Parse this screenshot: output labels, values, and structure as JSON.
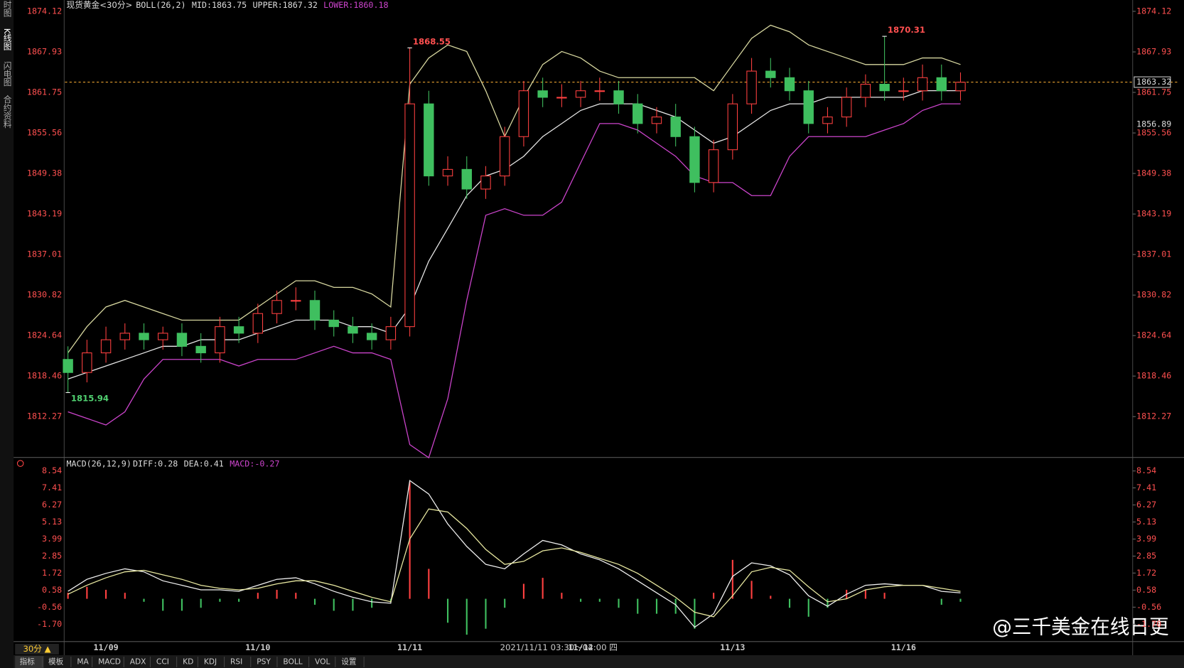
{
  "ui": {
    "sidebar": [
      "分时图",
      "K线图",
      "闪电图",
      "合约资料"
    ],
    "period": "30分 ▲",
    "tabs": [
      "指标",
      "模板",
      "MA",
      "MACD",
      "ADX",
      "CCI",
      "KD",
      "KDJ",
      "RSI",
      "PSY",
      "BOLL",
      "VOL",
      "设置"
    ],
    "crosshair_time": "2021/11/11 03:30～04:00 四",
    "watermark": "@三千美金在线日更"
  },
  "chart_data": [
    {
      "type": "candlestick",
      "title": "现货黄金<30分>",
      "indicator": [
        "BOLL(26,2)",
        "MID:1863.75",
        "UPPER:1867.32",
        "LOWER:1860.18"
      ],
      "categories": [
        null,
        null,
        "11/09",
        null,
        null,
        null,
        null,
        null,
        null,
        null,
        "11/10",
        null,
        null,
        null,
        null,
        null,
        null,
        null,
        "11/11",
        null,
        null,
        null,
        null,
        null,
        null,
        null,
        null,
        "11/12",
        null,
        null,
        null,
        null,
        null,
        null,
        null,
        "11/13",
        null,
        null,
        null,
        null,
        null,
        null,
        null,
        null,
        "11/16",
        null,
        null,
        null
      ],
      "open": [
        1821,
        1819,
        1822,
        1824,
        1825,
        1824,
        1825,
        1823,
        1822,
        1826,
        1825,
        1828,
        1830,
        1830,
        1827,
        1826,
        1825,
        1824,
        1826,
        1860,
        1849,
        1850,
        1847,
        1849,
        1855,
        1862,
        1861,
        1861,
        1862,
        1862,
        1860,
        1857,
        1858,
        1855,
        1848,
        1853,
        1860,
        1865,
        1864,
        1862,
        1857,
        1858,
        1861,
        1863,
        1862,
        1862,
        1864,
        1862
      ],
      "high": [
        1823,
        1824,
        1826,
        1826.5,
        1826.5,
        1826,
        1826.5,
        1825,
        1827.5,
        1827.5,
        1829.5,
        1831.5,
        1832,
        1831.5,
        1828.5,
        1827.5,
        1826.5,
        1827.5,
        1868.55,
        1862,
        1852,
        1852,
        1850.5,
        1856.5,
        1863.5,
        1864,
        1863,
        1863.5,
        1864,
        1863.5,
        1861.5,
        1859.5,
        1860,
        1856.5,
        1854.5,
        1861.5,
        1867,
        1867,
        1865.5,
        1863.5,
        1859.5,
        1862.5,
        1864.5,
        1870.31,
        1864,
        1866,
        1866,
        1864.8
      ],
      "low": [
        1815.94,
        1817.5,
        1820.5,
        1822.5,
        1822.5,
        1822.5,
        1821.5,
        1820.5,
        1820.5,
        1823.5,
        1823.5,
        1826.5,
        1828.5,
        1825.5,
        1824.5,
        1823.5,
        1822.5,
        1822.5,
        1824.5,
        1847.5,
        1847.5,
        1845.5,
        1845.5,
        1847.5,
        1853.5,
        1859.5,
        1859.5,
        1859.5,
        1860.5,
        1858.5,
        1855.5,
        1855.5,
        1853.5,
        1846.5,
        1846.5,
        1851.5,
        1858.5,
        1862.5,
        1860.5,
        1855.5,
        1855.5,
        1856.5,
        1859.5,
        1860.5,
        1860.5,
        1860.5,
        1860.5,
        1860.5
      ],
      "close": [
        1819,
        1822,
        1824,
        1825,
        1824,
        1825,
        1823,
        1822,
        1826,
        1825,
        1828,
        1830,
        1830,
        1827,
        1826,
        1825,
        1824,
        1826,
        1860,
        1849,
        1850,
        1847,
        1849,
        1855,
        1862,
        1861,
        1861,
        1862,
        1862,
        1860,
        1857,
        1858,
        1855,
        1848,
        1853,
        1860,
        1865,
        1864,
        1862,
        1857,
        1858,
        1861,
        1863,
        1862,
        1862,
        1864,
        1862,
        1863.3
      ],
      "series": [
        {
          "name": "UPPER",
          "color": "#d8d8a0",
          "values": [
            1822,
            1826,
            1829,
            1830,
            1829,
            1828,
            1827,
            1827,
            1827,
            1827,
            1829,
            1831,
            1833,
            1833,
            1832,
            1832,
            1831,
            1829,
            1863,
            1867,
            1869,
            1868,
            1862,
            1855,
            1861,
            1866,
            1868,
            1867,
            1865,
            1864,
            1864,
            1864,
            1864,
            1864,
            1862,
            1866,
            1870,
            1872,
            1871,
            1869,
            1868,
            1867,
            1866,
            1866,
            1866,
            1867,
            1867,
            1866
          ]
        },
        {
          "name": "MID",
          "color": "#e8e8e8",
          "values": [
            1818,
            1819,
            1820,
            1821,
            1822,
            1823,
            1823,
            1824,
            1824,
            1824,
            1825,
            1826,
            1827,
            1827,
            1827,
            1826,
            1826,
            1825,
            1829,
            1836,
            1841,
            1846,
            1849,
            1850,
            1852,
            1855,
            1857,
            1859,
            1860,
            1860,
            1860,
            1859,
            1858,
            1856,
            1854,
            1855,
            1857,
            1859,
            1860,
            1860,
            1861,
            1861,
            1861,
            1861,
            1861,
            1862,
            1862,
            1862
          ]
        },
        {
          "name": "LOWER",
          "color": "#cc44cc",
          "values": [
            1813,
            1812,
            1811,
            1813,
            1818,
            1821,
            1821,
            1821,
            1821,
            1820,
            1821,
            1821,
            1821,
            1822,
            1823,
            1822,
            1822,
            1821,
            1808,
            1806,
            1815,
            1830,
            1843,
            1844,
            1843,
            1843,
            1845,
            1851,
            1857,
            1857,
            1856,
            1854,
            1852,
            1849,
            1848,
            1848,
            1846,
            1846,
            1852,
            1855,
            1855,
            1855,
            1855,
            1856,
            1857,
            1859,
            1860,
            1860
          ]
        }
      ],
      "up_color": "#ff4040",
      "down_color": "#3fbf5f",
      "annotations": [
        1868.55,
        1870.31,
        1815.94
      ],
      "price_labels": [
        1863.32,
        1856.89
      ],
      "ylim": [
        1806.16,
        1874.93
      ],
      "yticks": [
        1874.12,
        1867.93,
        1861.75,
        1855.56,
        1849.38,
        1843.19,
        1837.01,
        1830.82,
        1824.64,
        1818.46,
        1812.27
      ]
    },
    {
      "type": "macd",
      "title": "MACD(26,12,9)",
      "indicator": [
        "DIFF:0.28",
        "DEA:0.41",
        "MACD:-0.27"
      ],
      "series": [
        {
          "name": "DIFF",
          "color": "#f0f0f0",
          "values": [
            0.5,
            1.3,
            1.7,
            2.0,
            1.8,
            1.2,
            0.9,
            0.6,
            0.6,
            0.5,
            0.9,
            1.3,
            1.4,
            1.0,
            0.5,
            0.1,
            -0.2,
            -0.3,
            7.9,
            7.0,
            5.0,
            3.5,
            2.3,
            2.0,
            3.0,
            3.9,
            3.6,
            3.0,
            2.6,
            2.0,
            1.2,
            0.4,
            -0.4,
            -1.9,
            -1.0,
            1.5,
            2.4,
            2.2,
            1.6,
            0.2,
            -0.5,
            0.3,
            0.9,
            1.0,
            0.9,
            0.9,
            0.5,
            0.4
          ]
        },
        {
          "name": "DEA",
          "color": "#e8e8a0",
          "values": [
            0.3,
            0.9,
            1.4,
            1.8,
            1.9,
            1.6,
            1.3,
            0.9,
            0.7,
            0.6,
            0.7,
            1.0,
            1.2,
            1.2,
            0.9,
            0.5,
            0.1,
            -0.2,
            4.0,
            6.0,
            5.8,
            4.7,
            3.3,
            2.3,
            2.5,
            3.2,
            3.4,
            3.1,
            2.7,
            2.3,
            1.7,
            0.9,
            0.1,
            -0.9,
            -1.2,
            0.2,
            1.8,
            2.1,
            1.9,
            0.8,
            -0.2,
            0.0,
            0.6,
            0.8,
            0.9,
            0.9,
            0.7,
            0.5
          ]
        }
      ],
      "histogram": [
        0.4,
        0.8,
        0.6,
        0.4,
        -0.2,
        -0.8,
        -0.8,
        -0.6,
        -0.2,
        -0.2,
        0.4,
        0.6,
        0.4,
        -0.4,
        -0.8,
        -0.8,
        -0.6,
        -0.2,
        7.8,
        2.0,
        -1.6,
        -2.4,
        -2.0,
        -0.6,
        1.0,
        1.4,
        0.4,
        -0.2,
        -0.2,
        -0.6,
        -1.0,
        -1.0,
        -1.0,
        -2.0,
        0.4,
        2.6,
        1.2,
        0.2,
        -0.6,
        -1.2,
        -0.6,
        0.6,
        0.6,
        0.4,
        0,
        0,
        -0.4,
        -0.2
      ],
      "up_color": "#ff4040",
      "down_color": "#3fbf5f",
      "ylim": [
        -2.86,
        8.74
      ],
      "yticks": [
        8.54,
        7.41,
        6.27,
        5.13,
        3.99,
        2.85,
        1.72,
        0.58,
        -0.56,
        {
          "value": -1.7,
          "label": "-1.70"
        }
      ]
    }
  ]
}
